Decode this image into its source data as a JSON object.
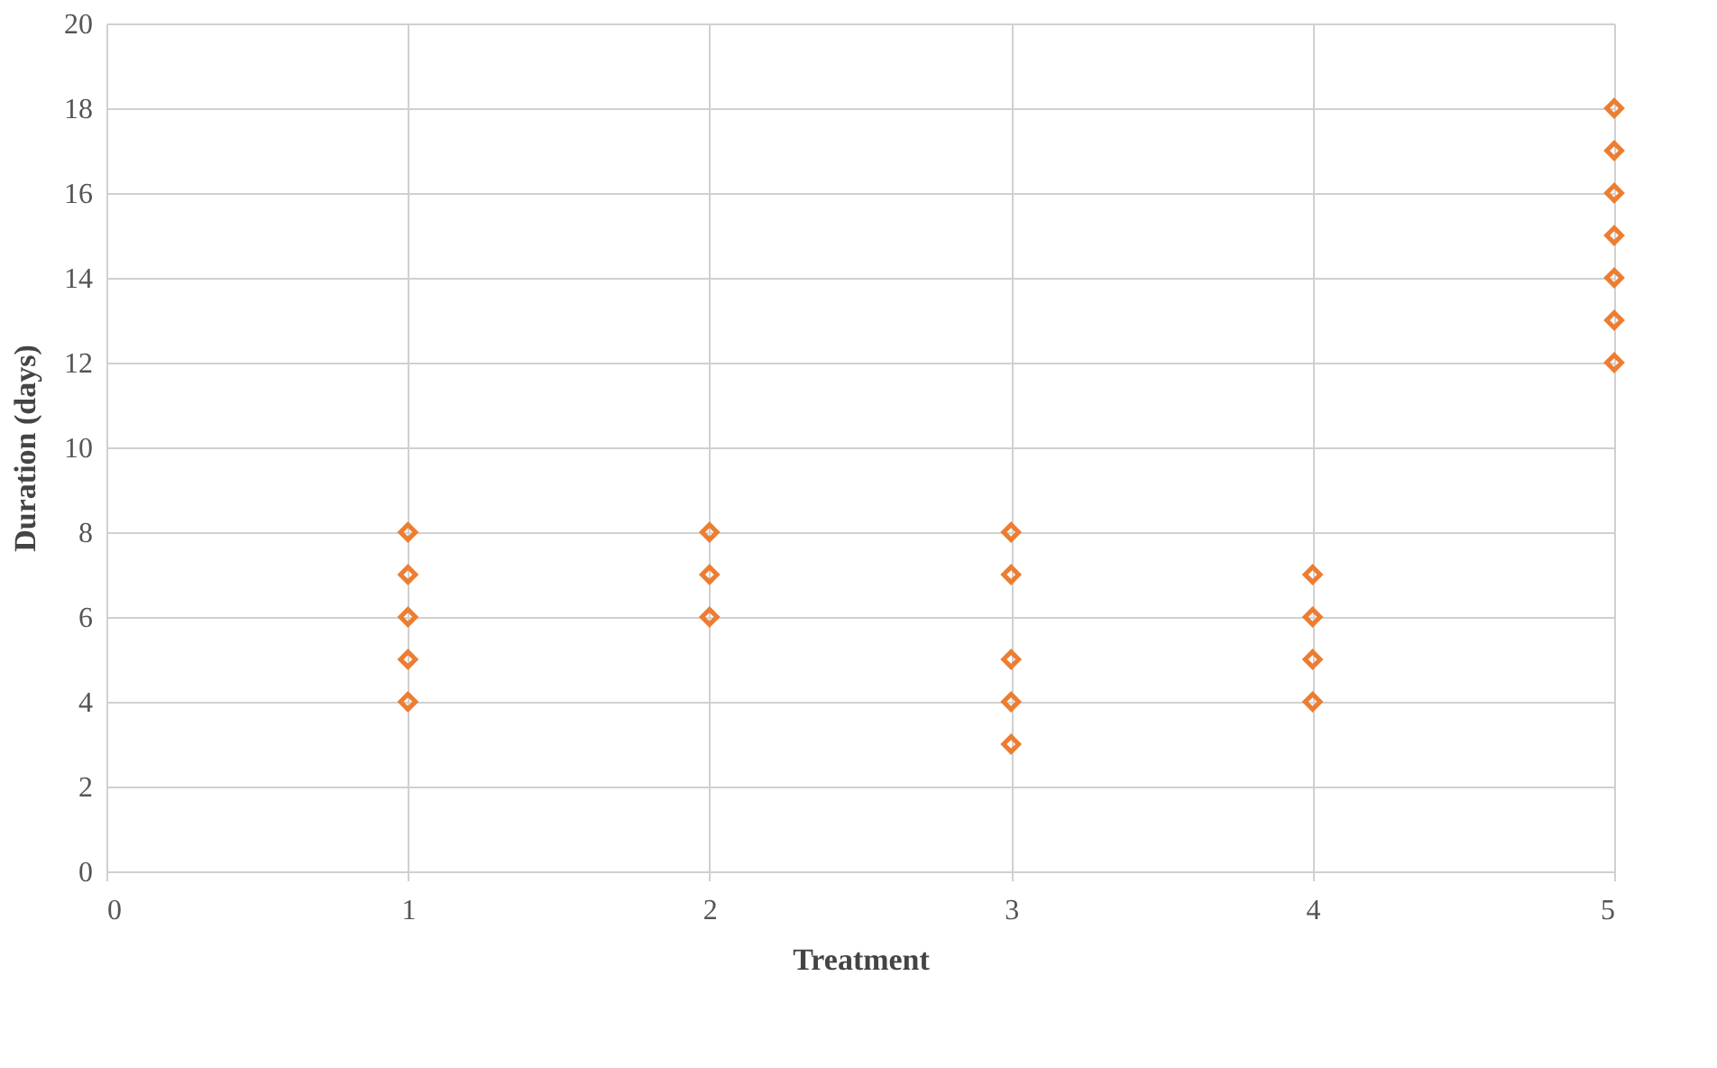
{
  "chart_data": {
    "type": "scatter",
    "xlabel": "Treatment",
    "ylabel": "Duration (days)",
    "x": [
      1,
      1,
      1,
      1,
      1,
      2,
      2,
      2,
      3,
      3,
      3,
      3,
      3,
      4,
      4,
      4,
      4,
      5,
      5,
      5,
      5,
      5,
      5,
      5
    ],
    "series": [
      {
        "color": "#ed7d31",
        "values": [
          4,
          5,
          6,
          7,
          8,
          6,
          7,
          8,
          3,
          4,
          5,
          7,
          8,
          4,
          5,
          6,
          7,
          12,
          13,
          14,
          15,
          16,
          17,
          18
        ]
      }
    ],
    "xlim": [
      0,
      5
    ],
    "xticks": [
      0,
      1,
      2,
      3,
      4,
      5
    ],
    "ylim": [
      0,
      20
    ],
    "yticks": [
      0,
      2,
      4,
      6,
      8,
      10,
      12,
      14,
      16,
      18,
      20
    ],
    "grid": true,
    "marker": "diamond"
  }
}
